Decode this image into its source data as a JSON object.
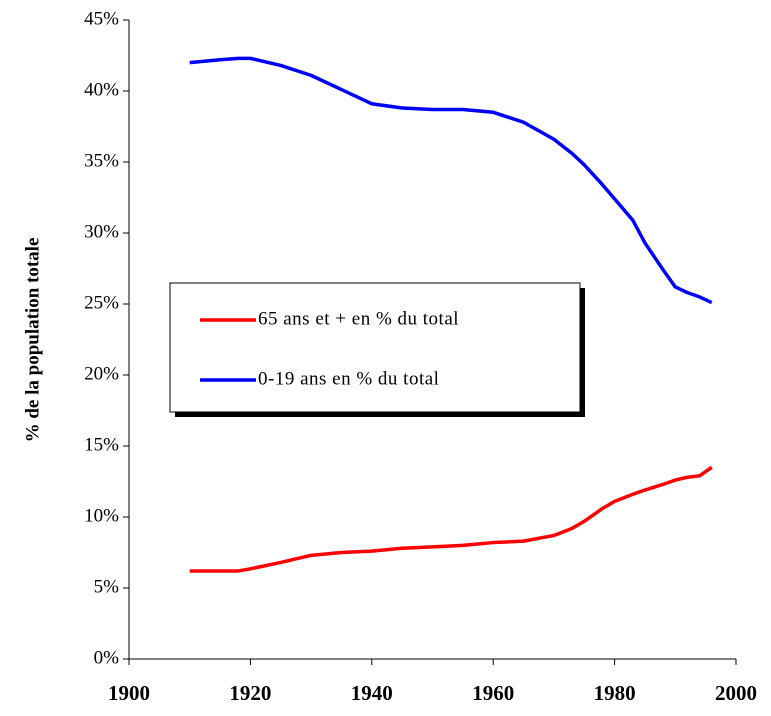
{
  "chart_data": {
    "type": "line",
    "y_label": "% de la population totale",
    "x": [
      1910,
      1915,
      1918,
      1920,
      1925,
      1930,
      1935,
      1940,
      1945,
      1950,
      1955,
      1960,
      1965,
      1970,
      1973,
      1975,
      1978,
      1980,
      1983,
      1985,
      1988,
      1990,
      1992,
      1994,
      1996
    ],
    "series": [
      {
        "name": "65 ans et + en % du total",
        "color": "#ff0000",
        "values": [
          6.2,
          6.2,
          6.2,
          6.35,
          6.8,
          7.3,
          7.5,
          7.6,
          7.8,
          7.9,
          8.0,
          8.2,
          8.3,
          8.7,
          9.2,
          9.7,
          10.6,
          11.1,
          11.6,
          11.9,
          12.3,
          12.6,
          12.8,
          12.9,
          13.5
        ]
      },
      {
        "name": "0-19 ans en % du total",
        "color": "#0000ff",
        "values": [
          42.0,
          42.2,
          42.3,
          42.3,
          41.8,
          41.1,
          40.1,
          39.1,
          38.8,
          38.7,
          38.7,
          38.5,
          37.8,
          36.6,
          35.6,
          34.8,
          33.4,
          32.4,
          30.9,
          29.3,
          27.4,
          26.2,
          25.8,
          25.5,
          25.1
        ]
      }
    ],
    "xlim": [
      1900,
      2000
    ],
    "xticks": [
      1900,
      1920,
      1940,
      1960,
      1980,
      2000
    ],
    "ylim": [
      0,
      45
    ],
    "yticks": [
      {
        "value": 0,
        "label": "0%"
      },
      {
        "value": 5,
        "label": "5%"
      },
      {
        "value": 10,
        "label": "10%"
      },
      {
        "value": 15,
        "label": "15%"
      },
      {
        "value": 20,
        "label": "20%"
      },
      {
        "value": 25,
        "label": "25%"
      },
      {
        "value": 30,
        "label": "30%"
      },
      {
        "value": 35,
        "label": "35%"
      },
      {
        "value": 40,
        "label": "40%"
      },
      {
        "value": 45,
        "label": "45%"
      }
    ],
    "grid": false,
    "legend": "center-left"
  }
}
